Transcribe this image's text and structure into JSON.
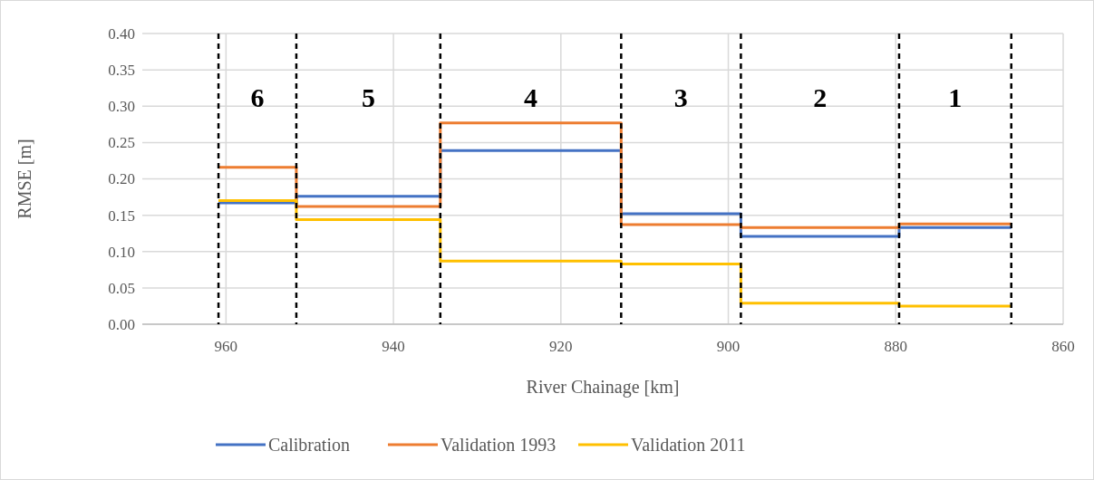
{
  "chart_data": {
    "type": "step",
    "xlabel": "River Chainage [km]",
    "ylabel": "RMSE [m]",
    "x": [
      960.9,
      951.6,
      934.4,
      912.8,
      898.5,
      879.6,
      866.2
    ],
    "series": [
      {
        "name": "Calibration",
        "color": "#4472c4",
        "values": [
          0.167,
          0.176,
          0.239,
          0.152,
          0.121,
          0.133,
          0.133
        ]
      },
      {
        "name": "Validation 1993",
        "color": "#ed7d31",
        "values": [
          0.216,
          0.162,
          0.277,
          0.137,
          0.133,
          0.138,
          0.138
        ]
      },
      {
        "name": "Validation 2011",
        "color": "#ffc000",
        "values": [
          0.17,
          0.144,
          0.087,
          0.083,
          0.029,
          0.025,
          0.025
        ]
      }
    ],
    "xlim": [
      970,
      860
    ],
    "xticks": [
      960,
      940,
      920,
      900,
      880,
      860
    ],
    "ylim": [
      0,
      0.4
    ],
    "yticks": [
      {
        "value": 0,
        "label": "0.00"
      },
      {
        "value": 0.05,
        "label": "0.05"
      },
      {
        "value": 0.1,
        "label": "0.10"
      },
      {
        "value": 0.15,
        "label": "0.15"
      },
      {
        "value": 0.2,
        "label": "0.20"
      },
      {
        "value": 0.25,
        "label": "0.25"
      },
      {
        "value": 0.3,
        "label": "0.30"
      },
      {
        "value": 0.35,
        "label": "0.35"
      },
      {
        "value": 0.4,
        "label": "0.40"
      }
    ],
    "ref_lines": [
      {
        "axis": "x",
        "value": 960.9,
        "color": "#000000",
        "line_style": "dashed"
      },
      {
        "axis": "x",
        "value": 951.6,
        "color": "#000000",
        "line_style": "dashed"
      },
      {
        "axis": "x",
        "value": 934.4,
        "color": "#000000",
        "line_style": "dashed"
      },
      {
        "axis": "x",
        "value": 912.8,
        "color": "#000000",
        "line_style": "dashed"
      },
      {
        "axis": "x",
        "value": 898.5,
        "color": "#000000",
        "line_style": "dashed"
      },
      {
        "axis": "x",
        "value": 879.6,
        "color": "#000000",
        "line_style": "dashed"
      },
      {
        "axis": "x",
        "value": 866.2,
        "color": "#000000",
        "line_style": "dashed"
      }
    ],
    "annotations": [
      "6",
      "5",
      "4",
      "3",
      "2",
      "1"
    ],
    "grid": true,
    "legend": "bottom",
    "line_style": "solid"
  }
}
